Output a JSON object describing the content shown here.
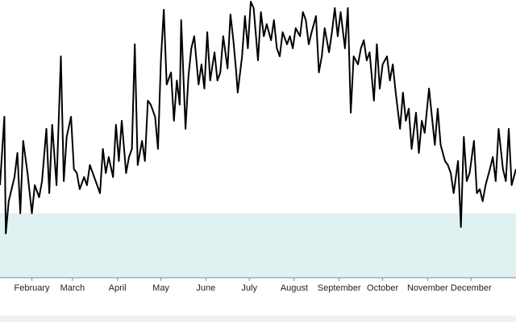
{
  "chart_data": {
    "type": "line",
    "x": [
      10,
      13,
      14,
      16,
      20,
      22,
      24,
      26,
      29,
      32,
      34,
      37,
      39,
      42,
      44,
      46,
      49,
      52,
      54,
      56,
      59,
      61,
      63,
      65,
      68,
      70,
      72,
      75,
      79,
      81,
      83,
      85,
      88,
      90,
      92,
      94,
      97,
      99,
      101,
      103,
      105,
      108,
      110,
      112,
      114,
      117,
      119,
      121,
      123,
      125,
      128,
      130,
      132,
      134,
      135,
      138,
      140,
      142,
      144,
      147,
      149,
      151,
      153,
      155,
      158,
      160,
      162,
      164,
      167,
      169,
      171,
      173,
      174,
      177,
      179,
      181,
      183,
      185,
      188,
      190,
      192,
      194,
      197,
      199,
      201,
      203,
      205,
      208,
      210,
      212,
      214,
      217,
      219,
      221,
      223,
      225,
      228,
      230,
      232,
      234,
      237,
      239,
      241,
      243,
      245,
      248,
      250,
      252,
      254,
      257,
      259,
      261,
      263,
      265,
      268,
      270,
      272,
      274,
      277,
      279,
      281,
      283,
      286,
      288,
      290,
      292,
      294,
      297,
      299,
      301,
      303,
      306,
      308,
      310,
      312,
      314,
      317,
      319,
      321,
      323,
      326,
      328,
      330,
      332,
      334,
      337,
      339,
      341,
      343,
      345,
      348,
      350,
      352,
      354,
      357,
      359,
      361,
      363,
      366
    ],
    "values": [
      115,
      200,
      55,
      95,
      125,
      155,
      80,
      170,
      130,
      80,
      115,
      100,
      120,
      185,
      105,
      190,
      115,
      275,
      120,
      175,
      200,
      135,
      130,
      110,
      125,
      115,
      140,
      125,
      105,
      160,
      130,
      150,
      125,
      190,
      145,
      195,
      130,
      150,
      160,
      290,
      140,
      170,
      145,
      220,
      215,
      200,
      160,
      270,
      333,
      240,
      255,
      195,
      245,
      215,
      320,
      185,
      250,
      285,
      300,
      240,
      265,
      235,
      305,
      245,
      280,
      245,
      255,
      300,
      260,
      327,
      295,
      255,
      230,
      275,
      325,
      285,
      343,
      335,
      270,
      330,
      300,
      315,
      295,
      320,
      285,
      275,
      305,
      290,
      300,
      285,
      310,
      300,
      330,
      320,
      290,
      305,
      325,
      255,
      275,
      310,
      280,
      305,
      335,
      300,
      330,
      285,
      335,
      205,
      275,
      265,
      285,
      295,
      270,
      280,
      220,
      290,
      235,
      265,
      275,
      245,
      265,
      230,
      185,
      230,
      195,
      210,
      160,
      205,
      155,
      195,
      180,
      235,
      200,
      165,
      210,
      165,
      145,
      140,
      130,
      105,
      145,
      63,
      175,
      120,
      130,
      170,
      105,
      110,
      95,
      115,
      135,
      150,
      120,
      185,
      135,
      120,
      185,
      115,
      135
    ],
    "color": "#000000",
    "band": [
      0,
      80
    ],
    "band_color": "#dff1f1",
    "xlim": [
      10,
      366
    ],
    "ylim": [
      0,
      345
    ],
    "xticks": [
      {
        "value": 32,
        "label": "February"
      },
      {
        "value": 60,
        "label": "March"
      },
      {
        "value": 91,
        "label": "April"
      },
      {
        "value": 121,
        "label": "May"
      },
      {
        "value": 152,
        "label": "June"
      },
      {
        "value": 182,
        "label": "July"
      },
      {
        "value": 213,
        "label": "August"
      },
      {
        "value": 244,
        "label": "September"
      },
      {
        "value": 274,
        "label": "October"
      },
      {
        "value": 305,
        "label": "November"
      },
      {
        "value": 335,
        "label": "December"
      }
    ]
  }
}
